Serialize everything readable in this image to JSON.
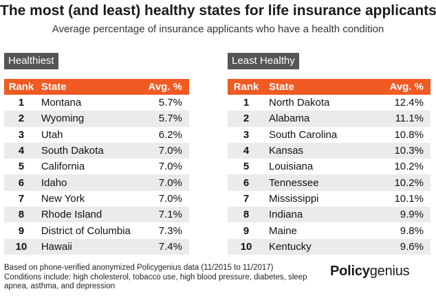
{
  "header": {
    "title": "The most (and least) healthy states for life insurance applicants",
    "subtitle": "Average percentage of insurance applicants who have a health condition"
  },
  "colors": {
    "header_row": "#f15a22",
    "tag": "#555555",
    "stripe": "#ebebeb"
  },
  "chart_data": [
    {
      "type": "table",
      "title": "Healthiest",
      "columns": [
        "Rank",
        "State",
        "Avg. %"
      ],
      "rows": [
        [
          "1",
          "Montana",
          "5.7%"
        ],
        [
          "2",
          "Wyoming",
          "5.7%"
        ],
        [
          "3",
          "Utah",
          "6.2%"
        ],
        [
          "4",
          "South Dakota",
          "7.0%"
        ],
        [
          "5",
          "California",
          "7.0%"
        ],
        [
          "6",
          "Idaho",
          "7.0%"
        ],
        [
          "7",
          "New York",
          "7.0%"
        ],
        [
          "8",
          "Rhode Island",
          "7.1%"
        ],
        [
          "9",
          "District of Columbia",
          "7.3%"
        ],
        [
          "10",
          "Hawaii",
          "7.4%"
        ]
      ]
    },
    {
      "type": "table",
      "title": "Least Healthy",
      "columns": [
        "Rank",
        "State",
        "Avg. %"
      ],
      "rows": [
        [
          "1",
          "North Dakota",
          "12.4%"
        ],
        [
          "2",
          "Alabama",
          "11.1%"
        ],
        [
          "3",
          "South Carolina",
          "10.8%"
        ],
        [
          "4",
          "Kansas",
          "10.3%"
        ],
        [
          "5",
          "Louisiana",
          "10.2%"
        ],
        [
          "6",
          "Tennessee",
          "10.2%"
        ],
        [
          "7",
          "Mississippi",
          "10.1%"
        ],
        [
          "8",
          "Indiana",
          "9.9%"
        ],
        [
          "9",
          "Maine",
          "9.8%"
        ],
        [
          "10",
          "Kentucky",
          "9.6%"
        ]
      ]
    }
  ],
  "footnote": {
    "line1": "Based on phone-verified anonymized Policygenius data (11/2015 to 11/2017)",
    "line2": "Conditions include: high cholesterol, tobacco use, high blood pressure, diabetes, sleep",
    "line3": "apnea, asthma, and depression"
  },
  "brand": {
    "part1": "Policy",
    "part2": "genius"
  }
}
